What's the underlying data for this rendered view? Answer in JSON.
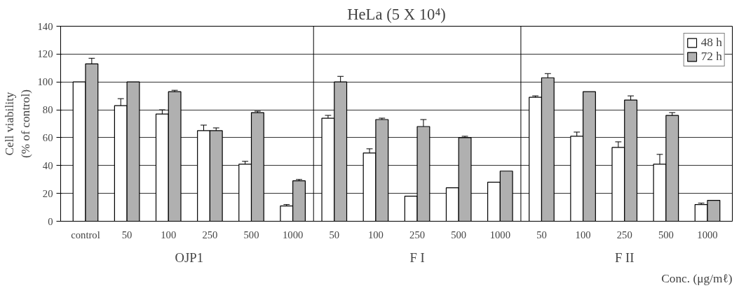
{
  "chart_data": {
    "type": "bar",
    "title": "HeLa (5 X 10⁴)",
    "ylabel": "Cell viability\n(% of control)",
    "xlabel": "Conc. (μg/mℓ)",
    "categories": [
      "control",
      "50",
      "100",
      "250",
      "500",
      "1000",
      "50",
      "100",
      "250",
      "500",
      "1000",
      "50",
      "100",
      "250",
      "500",
      "1000"
    ],
    "series": [
      {
        "name": "48 h",
        "color": "#ffffff",
        "values": [
          100,
          83,
          77,
          65,
          41,
          11,
          74,
          49,
          18,
          24,
          28,
          89,
          61,
          53,
          41,
          12
        ],
        "errors": [
          null,
          [
            83,
            88
          ],
          [
            77,
            80
          ],
          [
            65,
            69
          ],
          [
            41,
            43
          ],
          [
            11,
            12
          ],
          [
            74,
            76
          ],
          [
            49,
            52
          ],
          null,
          null,
          null,
          [
            89,
            90
          ],
          [
            61,
            64
          ],
          [
            53,
            57
          ],
          [
            41,
            48
          ],
          [
            12,
            13
          ]
        ]
      },
      {
        "name": "72 h",
        "color": "#b0b0b0",
        "values": [
          113,
          100,
          93,
          65,
          78,
          29,
          100,
          73,
          68,
          60,
          36,
          103,
          93,
          87,
          76,
          15
        ],
        "errors": [
          [
            113,
            117
          ],
          null,
          [
            93,
            94
          ],
          [
            65,
            67
          ],
          [
            78,
            79
          ],
          [
            29,
            30
          ],
          [
            100,
            104
          ],
          [
            73,
            74
          ],
          [
            68,
            73
          ],
          [
            60,
            61
          ],
          null,
          [
            103,
            106
          ],
          null,
          [
            87,
            90
          ],
          [
            76,
            78
          ],
          null
        ]
      }
    ],
    "ylim": [
      0,
      140
    ],
    "yticks": [
      0,
      20,
      40,
      60,
      80,
      100,
      120,
      140
    ],
    "grid": "y",
    "legend": "top right",
    "annotations": [
      "OJP1",
      "F I",
      "F II"
    ]
  }
}
